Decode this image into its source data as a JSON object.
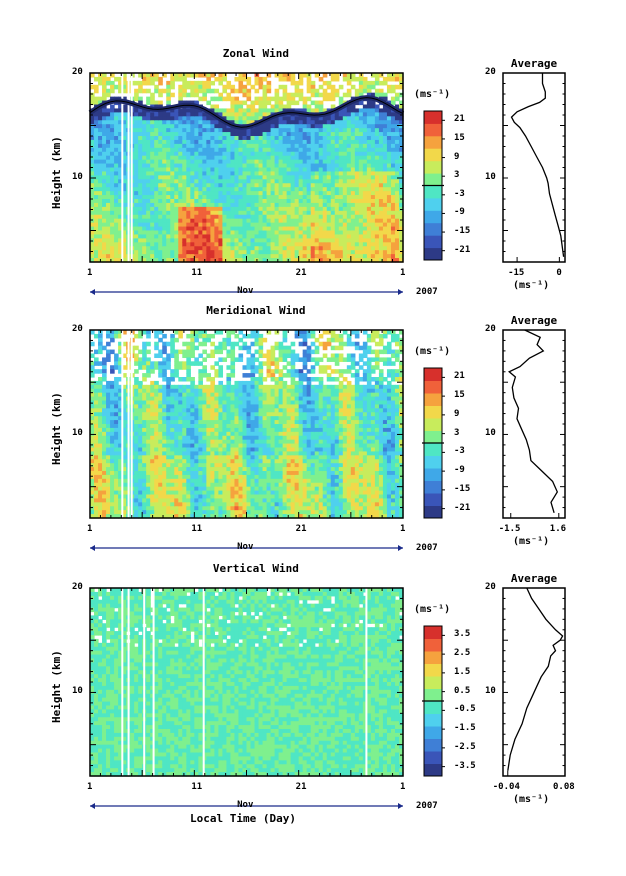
{
  "figure": {
    "x_axis_title": "Local Time (Day)",
    "year_label": "2007",
    "month_label": "Nov",
    "unit_label": "(ms⁻¹)",
    "average_title": "Average",
    "y_axis_title": "Height (km)"
  },
  "chart_data": [
    {
      "type": "heatmap",
      "title": "Zonal Wind",
      "xlabel": "",
      "ylabel": "Height (km)",
      "x_ticklabels": [
        "1",
        "11",
        "21",
        "1"
      ],
      "y_ticklabels": [
        "10",
        "20"
      ],
      "ylim": [
        2,
        20
      ],
      "colorbar_label": "(ms⁻¹)",
      "colorbar_ticks": [
        "21",
        "15",
        "9",
        "3",
        "-3",
        "-9",
        "-15",
        "-21"
      ],
      "colorbar_range": [
        -24,
        24
      ],
      "average_profile": {
        "title": "Average",
        "xlabel": "(ms⁻¹)",
        "x_ticklabels": [
          "-15",
          "0"
        ],
        "xlim": [
          -20,
          2
        ],
        "points": [
          [
            1.5,
            2.5
          ],
          [
            1,
            3.5
          ],
          [
            0.5,
            4.5
          ],
          [
            -0.5,
            5.5
          ],
          [
            -1.5,
            6.5
          ],
          [
            -2.5,
            7.5
          ],
          [
            -3.5,
            8.5
          ],
          [
            -4,
            9.5
          ],
          [
            -4.5,
            10
          ],
          [
            -6,
            11
          ],
          [
            -8,
            12
          ],
          [
            -10,
            13
          ],
          [
            -12,
            14
          ],
          [
            -14,
            14.8
          ],
          [
            -16,
            15.3
          ],
          [
            -17,
            15.8
          ],
          [
            -15,
            16.3
          ],
          [
            -11,
            16.8
          ],
          [
            -7,
            17.2
          ],
          [
            -5,
            17.6
          ],
          [
            -5,
            18.2
          ],
          [
            -6,
            19
          ],
          [
            -6,
            20
          ]
        ]
      }
    },
    {
      "type": "heatmap",
      "title": "Meridional Wind",
      "xlabel": "",
      "ylabel": "Height (km)",
      "x_ticklabels": [
        "1",
        "11",
        "21",
        "1"
      ],
      "y_ticklabels": [
        "10",
        "20"
      ],
      "ylim": [
        2,
        20
      ],
      "colorbar_label": "(ms⁻¹)",
      "colorbar_ticks": [
        "21",
        "15",
        "9",
        "3",
        "-3",
        "-9",
        "-15",
        "-21"
      ],
      "colorbar_range": [
        -24,
        24
      ],
      "average_profile": {
        "title": "Average",
        "xlabel": "(ms⁻¹)",
        "x_ticklabels": [
          "-1.5",
          "1.6"
        ],
        "xlim": [
          -2,
          2
        ],
        "points": [
          [
            1.3,
            2.5
          ],
          [
            1.1,
            3.5
          ],
          [
            1.5,
            4.5
          ],
          [
            1.2,
            5.5
          ],
          [
            0.5,
            6.5
          ],
          [
            -0.2,
            7.5
          ],
          [
            -0.3,
            8.5
          ],
          [
            -0.5,
            9.5
          ],
          [
            -0.8,
            10.5
          ],
          [
            -1.1,
            11.5
          ],
          [
            -1.0,
            12.5
          ],
          [
            -1.3,
            13.5
          ],
          [
            -1.4,
            14.5
          ],
          [
            -1.2,
            15.5
          ],
          [
            -1.6,
            16
          ],
          [
            -0.9,
            16.5
          ],
          [
            -0.3,
            17.3
          ],
          [
            0.6,
            18
          ],
          [
            0.2,
            18.6
          ],
          [
            0.4,
            19.3
          ],
          [
            -0.6,
            20
          ]
        ]
      }
    },
    {
      "type": "heatmap",
      "title": "Vertical Wind",
      "xlabel": "Local Time (Day)",
      "ylabel": "Height (km)",
      "x_ticklabels": [
        "1",
        "11",
        "21",
        "1"
      ],
      "y_ticklabels": [
        "10",
        "20"
      ],
      "ylim": [
        2,
        20
      ],
      "colorbar_label": "(ms⁻¹)",
      "colorbar_ticks": [
        "3.5",
        "2.5",
        "1.5",
        "0.5",
        "-0.5",
        "-1.5",
        "-2.5",
        "-3.5"
      ],
      "colorbar_range": [
        -4,
        4
      ],
      "average_profile": {
        "title": "Average",
        "xlabel": "(ms⁻¹)",
        "x_ticklabels": [
          "-0.04",
          "0.08"
        ],
        "xlim": [
          -0.05,
          0.08
        ],
        "points": [
          [
            -0.04,
            2.5
          ],
          [
            -0.035,
            4
          ],
          [
            -0.025,
            5.5
          ],
          [
            -0.01,
            7
          ],
          [
            0.0,
            8.5
          ],
          [
            0.01,
            9.5
          ],
          [
            0.02,
            10.5
          ],
          [
            0.03,
            11.5
          ],
          [
            0.045,
            12.5
          ],
          [
            0.05,
            13.5
          ],
          [
            0.06,
            14
          ],
          [
            0.055,
            14.5
          ],
          [
            0.07,
            15
          ],
          [
            0.075,
            15.4
          ],
          [
            0.06,
            16
          ],
          [
            0.04,
            17
          ],
          [
            0.025,
            18
          ],
          [
            0.01,
            19
          ],
          [
            0.0,
            20
          ]
        ]
      }
    }
  ]
}
